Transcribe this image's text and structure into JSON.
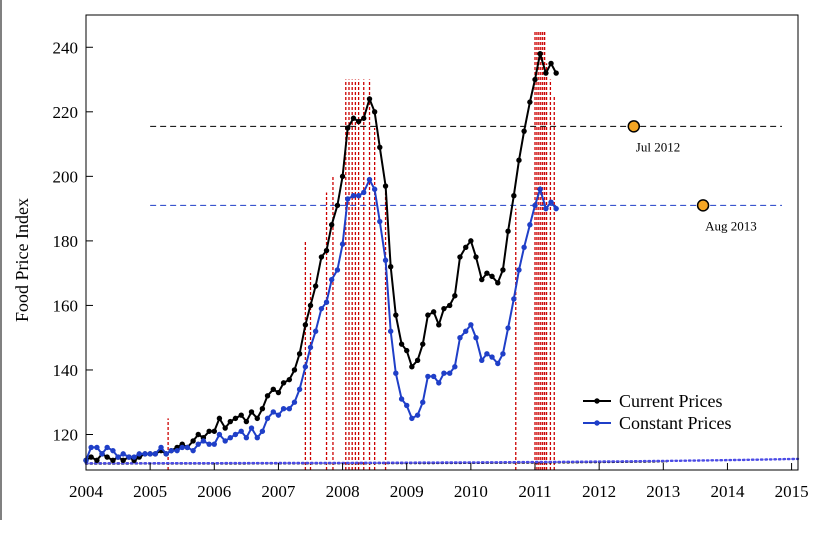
{
  "chart_data": {
    "type": "line",
    "ylabel": "Food Price Index",
    "xlabel": "",
    "xlim": [
      2004,
      2015.1
    ],
    "ylim": [
      109,
      250
    ],
    "x_ticks": [
      2004,
      2005,
      2006,
      2007,
      2008,
      2009,
      2010,
      2011,
      2012,
      2013,
      2014,
      2015
    ],
    "x_tick_labels": [
      "2004",
      "2005",
      "2006",
      "2007",
      "2008",
      "2009",
      "2010",
      "2011",
      "2012",
      "2013",
      "2014",
      "2015"
    ],
    "y_ticks": [
      120,
      140,
      160,
      180,
      200,
      220,
      240
    ],
    "y_tick_labels": [
      "120",
      "140",
      "160",
      "180",
      "200",
      "220",
      "240"
    ],
    "legend_position": "bottom-right",
    "series": [
      {
        "name": "Current Prices",
        "color": "#000000",
        "points": [
          [
            2004.0,
            112
          ],
          [
            2004.08,
            113
          ],
          [
            2004.17,
            112
          ],
          [
            2004.25,
            114
          ],
          [
            2004.33,
            113
          ],
          [
            2004.42,
            112
          ],
          [
            2004.5,
            113
          ],
          [
            2004.58,
            112
          ],
          [
            2004.67,
            113
          ],
          [
            2004.75,
            112
          ],
          [
            2004.83,
            113
          ],
          [
            2004.92,
            114
          ],
          [
            2005.0,
            114
          ],
          [
            2005.08,
            114
          ],
          [
            2005.17,
            115
          ],
          [
            2005.25,
            114
          ],
          [
            2005.33,
            115
          ],
          [
            2005.42,
            116
          ],
          [
            2005.5,
            117
          ],
          [
            2005.58,
            116
          ],
          [
            2005.67,
            118
          ],
          [
            2005.75,
            120
          ],
          [
            2005.83,
            119
          ],
          [
            2005.92,
            121
          ],
          [
            2006.0,
            121
          ],
          [
            2006.08,
            125
          ],
          [
            2006.17,
            122
          ],
          [
            2006.25,
            124
          ],
          [
            2006.33,
            125
          ],
          [
            2006.42,
            126
          ],
          [
            2006.5,
            124
          ],
          [
            2006.58,
            127
          ],
          [
            2006.67,
            125
          ],
          [
            2006.75,
            128
          ],
          [
            2006.83,
            132
          ],
          [
            2006.92,
            134
          ],
          [
            2007.0,
            133
          ],
          [
            2007.08,
            136
          ],
          [
            2007.17,
            137
          ],
          [
            2007.25,
            140
          ],
          [
            2007.33,
            145
          ],
          [
            2007.42,
            154
          ],
          [
            2007.5,
            160
          ],
          [
            2007.58,
            166
          ],
          [
            2007.67,
            175
          ],
          [
            2007.75,
            177
          ],
          [
            2007.83,
            185
          ],
          [
            2007.92,
            191
          ],
          [
            2008.0,
            200
          ],
          [
            2008.08,
            215
          ],
          [
            2008.17,
            218
          ],
          [
            2008.25,
            217
          ],
          [
            2008.33,
            218
          ],
          [
            2008.42,
            224
          ],
          [
            2008.5,
            220
          ],
          [
            2008.58,
            209
          ],
          [
            2008.67,
            197
          ],
          [
            2008.75,
            172
          ],
          [
            2008.83,
            157
          ],
          [
            2008.92,
            148
          ],
          [
            2009.0,
            146
          ],
          [
            2009.08,
            141
          ],
          [
            2009.17,
            143
          ],
          [
            2009.25,
            148
          ],
          [
            2009.33,
            157
          ],
          [
            2009.42,
            158
          ],
          [
            2009.5,
            154
          ],
          [
            2009.58,
            159
          ],
          [
            2009.67,
            160
          ],
          [
            2009.75,
            163
          ],
          [
            2009.83,
            175
          ],
          [
            2009.92,
            178
          ],
          [
            2010.0,
            180
          ],
          [
            2010.08,
            175
          ],
          [
            2010.17,
            168
          ],
          [
            2010.25,
            170
          ],
          [
            2010.33,
            169
          ],
          [
            2010.42,
            167
          ],
          [
            2010.5,
            171
          ],
          [
            2010.58,
            183
          ],
          [
            2010.67,
            194
          ],
          [
            2010.75,
            205
          ],
          [
            2010.83,
            214
          ],
          [
            2010.92,
            223
          ],
          [
            2011.0,
            230
          ],
          [
            2011.08,
            238
          ],
          [
            2011.17,
            232
          ],
          [
            2011.25,
            235
          ],
          [
            2011.33,
            232
          ]
        ]
      },
      {
        "name": "Constant Prices",
        "color": "#1f3fc8",
        "points": [
          [
            2004.0,
            112
          ],
          [
            2004.08,
            116
          ],
          [
            2004.17,
            116
          ],
          [
            2004.25,
            114
          ],
          [
            2004.33,
            116
          ],
          [
            2004.42,
            115
          ],
          [
            2004.5,
            113
          ],
          [
            2004.58,
            114
          ],
          [
            2004.67,
            113
          ],
          [
            2004.75,
            113
          ],
          [
            2004.83,
            114
          ],
          [
            2004.92,
            114
          ],
          [
            2005.0,
            114
          ],
          [
            2005.08,
            114
          ],
          [
            2005.17,
            116
          ],
          [
            2005.25,
            114
          ],
          [
            2005.33,
            115
          ],
          [
            2005.42,
            115
          ],
          [
            2005.5,
            116
          ],
          [
            2005.58,
            116
          ],
          [
            2005.67,
            115
          ],
          [
            2005.75,
            117
          ],
          [
            2005.83,
            118
          ],
          [
            2005.92,
            117
          ],
          [
            2006.0,
            117
          ],
          [
            2006.08,
            120
          ],
          [
            2006.17,
            118
          ],
          [
            2006.25,
            119
          ],
          [
            2006.33,
            120
          ],
          [
            2006.42,
            121
          ],
          [
            2006.5,
            119
          ],
          [
            2006.58,
            122
          ],
          [
            2006.67,
            119
          ],
          [
            2006.75,
            121
          ],
          [
            2006.83,
            125
          ],
          [
            2006.92,
            127
          ],
          [
            2007.0,
            126
          ],
          [
            2007.08,
            128
          ],
          [
            2007.17,
            128
          ],
          [
            2007.25,
            130
          ],
          [
            2007.33,
            134
          ],
          [
            2007.42,
            141
          ],
          [
            2007.5,
            147
          ],
          [
            2007.58,
            152
          ],
          [
            2007.67,
            159
          ],
          [
            2007.75,
            161
          ],
          [
            2007.83,
            168
          ],
          [
            2007.92,
            171
          ],
          [
            2008.0,
            179
          ],
          [
            2008.08,
            193
          ],
          [
            2008.17,
            194
          ],
          [
            2008.25,
            194
          ],
          [
            2008.33,
            195
          ],
          [
            2008.42,
            199
          ],
          [
            2008.5,
            196
          ],
          [
            2008.58,
            186
          ],
          [
            2008.67,
            174
          ],
          [
            2008.75,
            152
          ],
          [
            2008.83,
            139
          ],
          [
            2008.92,
            131
          ],
          [
            2009.0,
            129
          ],
          [
            2009.08,
            125
          ],
          [
            2009.17,
            126
          ],
          [
            2009.25,
            130
          ],
          [
            2009.33,
            138
          ],
          [
            2009.42,
            138
          ],
          [
            2009.5,
            136
          ],
          [
            2009.58,
            139
          ],
          [
            2009.67,
            139
          ],
          [
            2009.75,
            141
          ],
          [
            2009.83,
            150
          ],
          [
            2009.92,
            152
          ],
          [
            2010.0,
            154
          ],
          [
            2010.08,
            150
          ],
          [
            2010.17,
            143
          ],
          [
            2010.25,
            145
          ],
          [
            2010.33,
            144
          ],
          [
            2010.42,
            142
          ],
          [
            2010.5,
            145
          ],
          [
            2010.58,
            153
          ],
          [
            2010.67,
            162
          ],
          [
            2010.75,
            171
          ],
          [
            2010.83,
            178
          ],
          [
            2010.92,
            185
          ],
          [
            2011.0,
            191
          ],
          [
            2011.08,
            196
          ],
          [
            2011.17,
            190
          ],
          [
            2011.25,
            192
          ],
          [
            2011.33,
            190
          ]
        ]
      }
    ],
    "trend_lines": [
      {
        "name": "current-trend",
        "color": "#000000",
        "x_range": [
          2004.0,
          2013.05
        ],
        "a": 111,
        "b": 0.0232,
        "k": 0.38
      },
      {
        "name": "constant-trend",
        "color": "#4b4be6",
        "x_range": [
          2004.0,
          2015.1
        ],
        "a": 111,
        "b": 0.068,
        "k": 0.275
      }
    ],
    "thresholds": [
      {
        "name": "current-threshold",
        "y": 215.5,
        "color": "#000000"
      },
      {
        "name": "constant-threshold",
        "y": 191,
        "color": "#1f3fc8"
      }
    ],
    "crossings": [
      {
        "name": "jul-2012",
        "x": 2012.54,
        "y": 215.5,
        "label": "Jul 2012"
      },
      {
        "name": "aug-2013",
        "x": 2013.62,
        "y": 191,
        "label": "Aug 2013"
      }
    ],
    "riot_markers": {
      "color": "#cc0000",
      "events": [
        [
          2005.28,
          125
        ],
        [
          2007.42,
          180
        ],
        [
          2007.5,
          170
        ],
        [
          2007.75,
          195
        ],
        [
          2007.85,
          200
        ],
        [
          2008.05,
          230
        ],
        [
          2008.1,
          230
        ],
        [
          2008.15,
          230
        ],
        [
          2008.2,
          230
        ],
        [
          2008.25,
          230
        ],
        [
          2008.33,
          230
        ],
        [
          2008.42,
          230
        ],
        [
          2008.5,
          215
        ],
        [
          2008.67,
          195
        ],
        [
          2010.7,
          190
        ],
        [
          2011.0,
          245
        ],
        [
          2011.03,
          245
        ],
        [
          2011.06,
          245
        ],
        [
          2011.09,
          245
        ],
        [
          2011.12,
          245
        ],
        [
          2011.15,
          245
        ],
        [
          2011.18,
          235
        ],
        [
          2011.24,
          230
        ],
        [
          2011.3,
          225
        ]
      ]
    }
  }
}
